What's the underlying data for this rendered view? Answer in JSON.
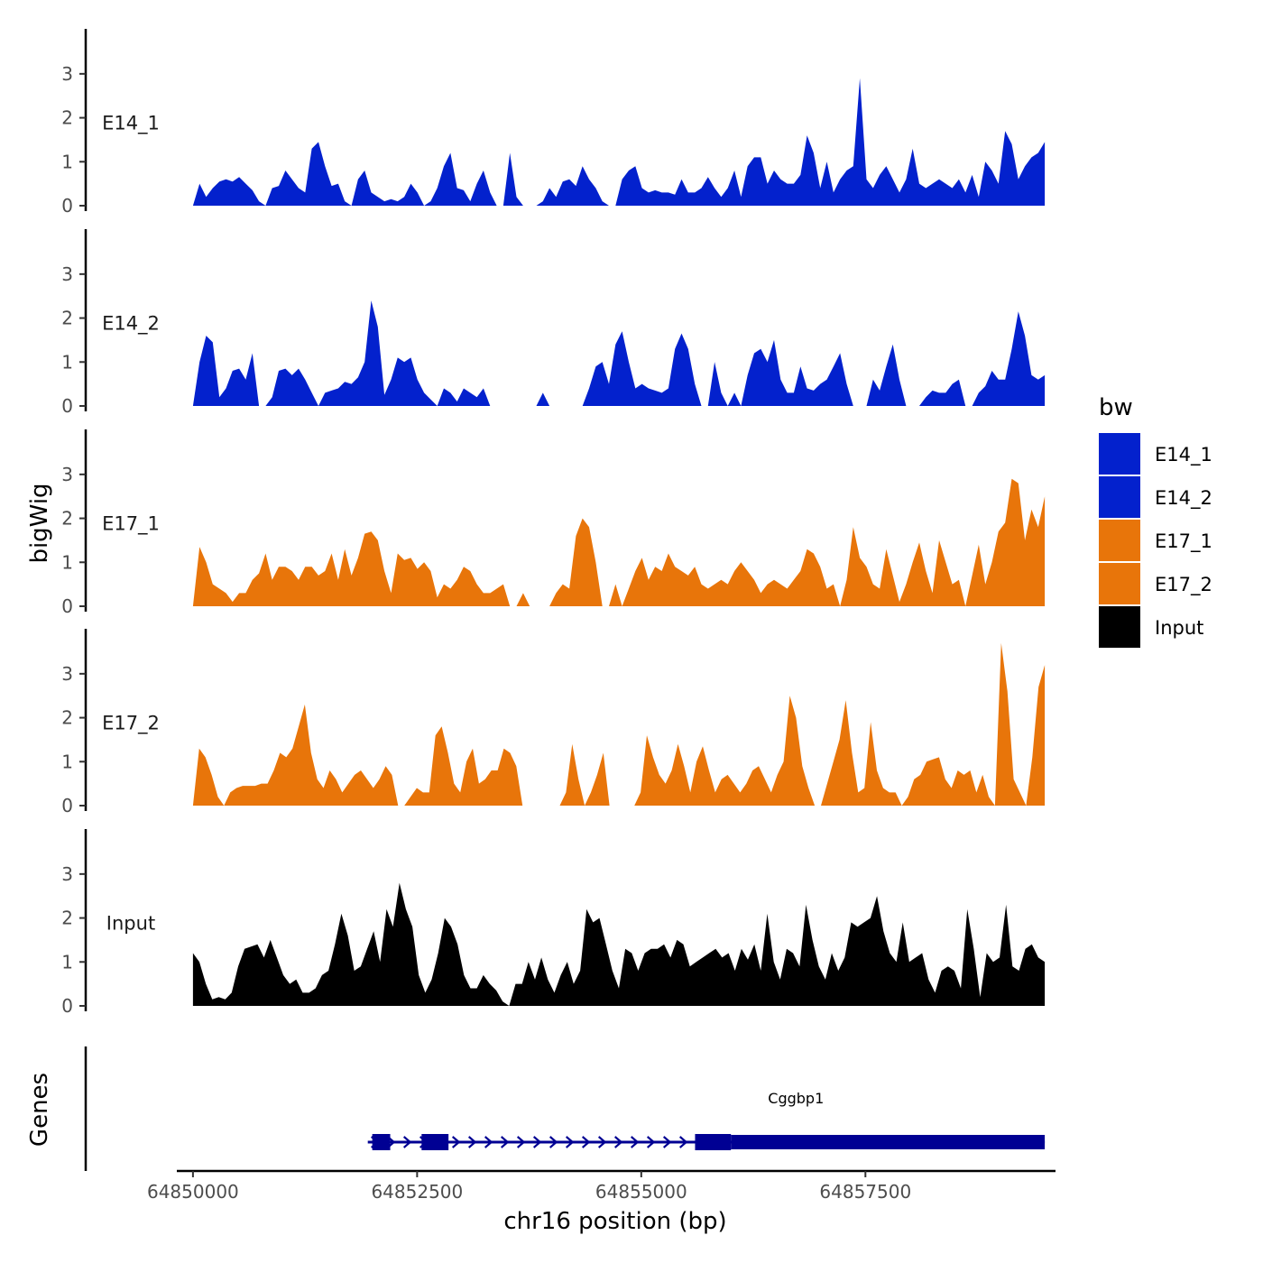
{
  "chart_data": {
    "type": "area",
    "title": "",
    "xlabel": "chr16 position (bp)",
    "ylabel": "bigWig",
    "xlim": [
      64849820,
      64859620
    ],
    "ylim": [
      0,
      3.9
    ],
    "x_ticks": [
      64850000,
      64852500,
      64855000,
      64857500
    ],
    "x_tick_labels": [
      "64850000",
      "64852500",
      "64855000",
      "64857500"
    ],
    "y_ticks": [
      0,
      1,
      2,
      3
    ],
    "y_tick_labels": [
      "0",
      "1",
      "2",
      "3"
    ],
    "track_start": 64850000,
    "track_end": 64859500,
    "legend": {
      "title": "bw",
      "position": "right",
      "entries": [
        {
          "label": "E14_1",
          "color": "#0321cd"
        },
        {
          "label": "E14_2",
          "color": "#0321cd"
        },
        {
          "label": "E17_1",
          "color": "#e8750a"
        },
        {
          "label": "E17_2",
          "color": "#e8750a"
        },
        {
          "label": "Input",
          "color": "#000000"
        }
      ]
    },
    "series": [
      {
        "name": "E14_1",
        "color": "#0321cd",
        "values": [
          0.0,
          0.5,
          0.2,
          0.4,
          0.55,
          0.6,
          0.55,
          0.65,
          0.5,
          0.35,
          0.1,
          0.0,
          0.4,
          0.45,
          0.8,
          0.6,
          0.4,
          0.3,
          1.3,
          1.45,
          0.9,
          0.45,
          0.5,
          0.1,
          0.0,
          0.6,
          0.8,
          0.3,
          0.2,
          0.1,
          0.15,
          0.1,
          0.2,
          0.5,
          0.3,
          0.0,
          0.1,
          0.4,
          0.9,
          1.2,
          0.4,
          0.35,
          0.1,
          0.5,
          0.8,
          0.3,
          0.0,
          0.0,
          1.2,
          0.2,
          0.0,
          0.0,
          0.0,
          0.1,
          0.4,
          0.2,
          0.55,
          0.6,
          0.45,
          0.9,
          0.6,
          0.4,
          0.1,
          0.0,
          0.0,
          0.6,
          0.8,
          0.9,
          0.4,
          0.3,
          0.35,
          0.3,
          0.3,
          0.25,
          0.6,
          0.3,
          0.3,
          0.4,
          0.65,
          0.4,
          0.2,
          0.4,
          0.8,
          0.2,
          0.9,
          1.1,
          1.1,
          0.5,
          0.8,
          0.6,
          0.5,
          0.5,
          0.7,
          1.6,
          1.2,
          0.4,
          1.0,
          0.3,
          0.6,
          0.8,
          0.9,
          2.9,
          0.6,
          0.4,
          0.7,
          0.9,
          0.6,
          0.3,
          0.6,
          1.3,
          0.5,
          0.4,
          0.5,
          0.6,
          0.5,
          0.4,
          0.6,
          0.3,
          0.7,
          0.2,
          1.0,
          0.8,
          0.5,
          1.7,
          1.4,
          0.6,
          0.9,
          1.1,
          1.2,
          1.45
        ]
      },
      {
        "name": "E14_2",
        "color": "#0321cd",
        "values": [
          0.0,
          1.0,
          1.6,
          1.45,
          0.2,
          0.4,
          0.8,
          0.85,
          0.6,
          1.2,
          0.0,
          0.0,
          0.2,
          0.8,
          0.85,
          0.7,
          0.85,
          0.6,
          0.3,
          0.0,
          0.3,
          0.35,
          0.4,
          0.55,
          0.5,
          0.65,
          1.0,
          2.4,
          1.8,
          0.25,
          0.6,
          1.1,
          1.0,
          1.1,
          0.6,
          0.3,
          0.15,
          0.0,
          0.4,
          0.3,
          0.1,
          0.4,
          0.3,
          0.2,
          0.4,
          0.0,
          0.0,
          0.0,
          0.0,
          0.0,
          0.0,
          0.0,
          0.0,
          0.3,
          0.0,
          0.0,
          0.0,
          0.0,
          0.0,
          0.0,
          0.4,
          0.9,
          1.0,
          0.5,
          1.4,
          1.7,
          1.0,
          0.4,
          0.5,
          0.4,
          0.35,
          0.3,
          0.4,
          1.3,
          1.65,
          1.3,
          0.5,
          0.0,
          0.0,
          1.0,
          0.3,
          0.0,
          0.3,
          0.0,
          0.7,
          1.2,
          1.3,
          1.0,
          1.5,
          0.6,
          0.3,
          0.3,
          0.9,
          0.4,
          0.35,
          0.5,
          0.6,
          0.9,
          1.2,
          0.5,
          0.0,
          0.0,
          0.0,
          0.6,
          0.35,
          0.9,
          1.4,
          0.6,
          0.0,
          0.0,
          0.0,
          0.2,
          0.35,
          0.3,
          0.3,
          0.5,
          0.6,
          0.0,
          0.0,
          0.3,
          0.45,
          0.8,
          0.6,
          0.6,
          1.3,
          2.15,
          1.6,
          0.7,
          0.6,
          0.7
        ]
      },
      {
        "name": "E17_1",
        "color": "#e8750a",
        "values": [
          0.0,
          1.35,
          1.0,
          0.5,
          0.4,
          0.3,
          0.1,
          0.3,
          0.3,
          0.6,
          0.75,
          1.2,
          0.6,
          0.9,
          0.9,
          0.8,
          0.6,
          0.9,
          0.9,
          0.7,
          0.8,
          1.2,
          0.6,
          1.3,
          0.7,
          1.1,
          1.65,
          1.7,
          1.5,
          0.8,
          0.3,
          1.2,
          1.05,
          1.1,
          0.85,
          1.0,
          0.8,
          0.2,
          0.5,
          0.4,
          0.6,
          0.9,
          0.8,
          0.5,
          0.3,
          0.3,
          0.4,
          0.5,
          0.0,
          0.0,
          0.3,
          0.0,
          0.0,
          0.0,
          0.0,
          0.3,
          0.5,
          0.4,
          1.6,
          2.0,
          1.8,
          1.0,
          0.0,
          0.0,
          0.5,
          0.0,
          0.4,
          0.8,
          1.1,
          0.6,
          0.9,
          0.8,
          1.2,
          0.9,
          0.8,
          0.7,
          0.9,
          0.5,
          0.4,
          0.5,
          0.6,
          0.5,
          0.8,
          1.0,
          0.8,
          0.6,
          0.3,
          0.5,
          0.6,
          0.5,
          0.4,
          0.6,
          0.8,
          1.3,
          1.2,
          0.9,
          0.4,
          0.5,
          0.0,
          0.6,
          1.8,
          1.1,
          0.9,
          0.5,
          0.4,
          1.3,
          0.7,
          0.1,
          0.5,
          1.0,
          1.45,
          0.8,
          0.3,
          1.5,
          1.0,
          0.5,
          0.6,
          0.0,
          0.7,
          1.4,
          0.5,
          1.0,
          1.7,
          1.9,
          2.9,
          2.8,
          1.5,
          2.2,
          1.8,
          2.5
        ]
      },
      {
        "name": "E17_2",
        "color": "#e8750a",
        "values": [
          0.0,
          1.3,
          1.1,
          0.7,
          0.2,
          0.0,
          0.3,
          0.4,
          0.45,
          0.45,
          0.45,
          0.5,
          0.5,
          0.8,
          1.2,
          1.1,
          1.3,
          1.8,
          2.3,
          1.2,
          0.6,
          0.4,
          0.8,
          0.6,
          0.3,
          0.5,
          0.7,
          0.8,
          0.6,
          0.4,
          0.6,
          0.9,
          0.7,
          0.0,
          0.0,
          0.2,
          0.4,
          0.3,
          0.3,
          1.6,
          1.8,
          1.2,
          0.5,
          0.3,
          1.0,
          1.3,
          0.5,
          0.6,
          0.8,
          0.8,
          1.3,
          1.2,
          0.9,
          0.0,
          0.0,
          0.0,
          0.0,
          0.0,
          0.0,
          0.0,
          0.3,
          1.4,
          0.6,
          0.0,
          0.3,
          0.7,
          1.2,
          0.0,
          0.0,
          0.0,
          0.0,
          0.0,
          0.3,
          1.6,
          1.1,
          0.7,
          0.5,
          0.8,
          1.4,
          0.9,
          0.3,
          1.0,
          1.35,
          0.8,
          0.3,
          0.6,
          0.7,
          0.5,
          0.3,
          0.5,
          0.8,
          0.9,
          0.6,
          0.3,
          0.7,
          1.0,
          2.5,
          2.0,
          0.9,
          0.4,
          0.0,
          0.0,
          0.5,
          1.0,
          1.5,
          2.4,
          1.2,
          0.3,
          0.4,
          1.9,
          0.8,
          0.4,
          0.3,
          0.3,
          0.0,
          0.2,
          0.6,
          0.7,
          1.0,
          1.05,
          1.1,
          0.6,
          0.4,
          0.8,
          0.7,
          0.8,
          0.3,
          0.7,
          0.2,
          0.0,
          3.7,
          2.6,
          0.6,
          0.3,
          0.0,
          1.1,
          2.7,
          3.2
        ]
      },
      {
        "name": "Input",
        "color": "#000000",
        "values": [
          1.2,
          1.0,
          0.5,
          0.15,
          0.2,
          0.15,
          0.3,
          0.9,
          1.3,
          1.35,
          1.4,
          1.1,
          1.5,
          1.1,
          0.7,
          0.5,
          0.6,
          0.3,
          0.3,
          0.4,
          0.7,
          0.8,
          1.4,
          2.1,
          1.6,
          0.8,
          0.9,
          1.3,
          1.7,
          1.0,
          2.2,
          1.8,
          2.8,
          2.2,
          1.8,
          0.7,
          0.3,
          0.6,
          1.2,
          2.0,
          1.8,
          1.4,
          0.7,
          0.4,
          0.4,
          0.7,
          0.5,
          0.35,
          0.1,
          0.0,
          0.5,
          0.5,
          1.0,
          0.6,
          1.1,
          0.6,
          0.3,
          0.7,
          1.0,
          0.5,
          0.8,
          2.2,
          1.9,
          2.0,
          1.4,
          0.8,
          0.4,
          1.3,
          1.2,
          0.8,
          1.2,
          1.3,
          1.3,
          1.4,
          1.1,
          1.5,
          1.4,
          0.9,
          1.0,
          1.1,
          1.2,
          1.3,
          1.1,
          1.2,
          0.8,
          1.3,
          1.05,
          1.4,
          0.8,
          2.1,
          1.0,
          0.6,
          1.3,
          1.2,
          0.9,
          2.3,
          1.5,
          0.9,
          0.6,
          1.2,
          0.8,
          1.1,
          1.9,
          1.8,
          1.9,
          2.0,
          2.5,
          1.7,
          1.2,
          1.0,
          1.9,
          1.0,
          1.1,
          1.2,
          0.6,
          0.3,
          0.8,
          0.9,
          0.8,
          0.4,
          2.2,
          1.3,
          0.2,
          1.2,
          1.0,
          1.1,
          2.3,
          0.9,
          0.8,
          1.3,
          1.4,
          1.1,
          1.0
        ]
      }
    ],
    "genes": [
      {
        "name": "Cggbp1",
        "start": 64851950,
        "end": 64859500,
        "exons": [
          [
            64852000,
            64852200
          ],
          [
            64852550,
            64852850
          ],
          [
            64855600,
            64856000
          ]
        ],
        "utr_end": [
          64856000,
          64859500
        ],
        "color": "#000093"
      }
    ],
    "gene_panel_label": "Genes"
  }
}
